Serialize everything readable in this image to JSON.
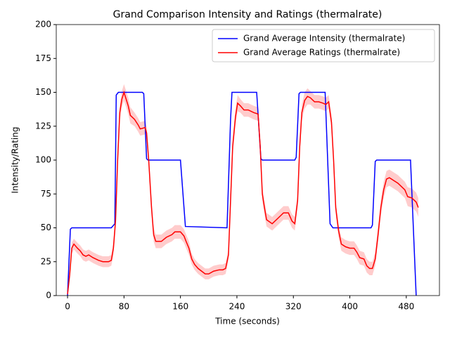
{
  "chart_data": {
    "type": "line",
    "title": "Grand Comparison Intensity and Ratings (thermalrate)",
    "x_label": "Time (seconds)",
    "y_label": "Intensity/Rating",
    "xlim": [
      -16,
      527
    ],
    "ylim": [
      0,
      200
    ],
    "xticks": [
      0,
      80,
      160,
      240,
      320,
      400,
      480
    ],
    "yticks": [
      0,
      25,
      50,
      75,
      100,
      125,
      150,
      175,
      200
    ],
    "legend": "upper right",
    "series": [
      {
        "name": "Grand Average Intensity (thermalrate)",
        "color": "#0000ff",
        "x": [
          0,
          4,
          6,
          62,
          67,
          69,
          72,
          106,
          108,
          112,
          114,
          160,
          167,
          226,
          231,
          233,
          268,
          274,
          276,
          322,
          324,
          328,
          330,
          365,
          372,
          376,
          430,
          432,
          436,
          438,
          486,
          494
        ],
        "values": [
          0,
          49,
          50,
          50,
          53,
          148,
          150,
          150,
          149,
          101,
          100,
          100,
          51,
          50,
          130,
          150,
          150,
          101,
          100,
          100,
          102,
          149,
          150,
          150,
          53,
          50,
          50,
          52,
          99,
          100,
          100,
          0
        ]
      },
      {
        "name": "Grand Average Ratings (thermalrate)",
        "color": "#ff0000",
        "band_color": "#ff0000",
        "x": [
          0,
          3,
          6,
          9,
          14,
          18,
          22,
          26,
          30,
          36,
          44,
          50,
          58,
          62,
          65,
          68,
          71,
          74,
          77,
          80,
          83,
          86,
          89,
          95,
          100,
          103,
          110,
          112,
          115,
          119,
          122,
          125,
          133,
          140,
          148,
          152,
          160,
          165,
          168,
          172,
          176,
          180,
          185,
          190,
          195,
          200,
          207,
          215,
          220,
          224,
          228,
          231,
          234,
          238,
          241,
          245,
          250,
          256,
          264,
          270,
          273,
          276,
          279,
          282,
          290,
          298,
          306,
          313,
          318,
          322,
          326,
          329,
          332,
          336,
          340,
          344,
          350,
          356,
          362,
          366,
          370,
          374,
          377,
          380,
          384,
          388,
          394,
          400,
          406,
          410,
          414,
          420,
          424,
          428,
          432,
          436,
          440,
          444,
          448,
          452,
          456,
          462,
          468,
          474,
          478,
          482,
          488,
          494,
          497
        ],
        "values": [
          1,
          15,
          35,
          38,
          35,
          33,
          30,
          29,
          30,
          28,
          26,
          25,
          25,
          26,
          35,
          55,
          100,
          135,
          145,
          150,
          145,
          140,
          133,
          130,
          126,
          123,
          124,
          120,
          100,
          65,
          45,
          40,
          40,
          43,
          45,
          47,
          47,
          44,
          40,
          35,
          27,
          23,
          20,
          18,
          16,
          16,
          18,
          19,
          19,
          20,
          30,
          70,
          110,
          132,
          142,
          140,
          137,
          137,
          135,
          134,
          110,
          75,
          65,
          56,
          53,
          57,
          61,
          61,
          55,
          53,
          70,
          110,
          135,
          144,
          147,
          146,
          143,
          143,
          142,
          141,
          143,
          128,
          100,
          65,
          48,
          38,
          36,
          35,
          35,
          32,
          28,
          27,
          22,
          20,
          20,
          27,
          45,
          65,
          78,
          86,
          87,
          85,
          83,
          80,
          78,
          73,
          72,
          69,
          65
        ],
        "error": [
          1,
          3,
          4,
          4,
          4,
          4,
          4,
          4,
          4,
          4,
          4,
          4,
          4,
          4,
          5,
          6,
          6,
          6,
          6,
          6,
          6,
          6,
          6,
          5,
          5,
          5,
          5,
          5,
          5,
          5,
          5,
          5,
          5,
          5,
          5,
          5,
          5,
          5,
          5,
          5,
          4,
          4,
          4,
          4,
          4,
          4,
          4,
          4,
          4,
          4,
          4,
          5,
          6,
          6,
          6,
          5,
          5,
          5,
          5,
          5,
          5,
          5,
          5,
          5,
          5,
          5,
          5,
          5,
          5,
          5,
          5,
          6,
          6,
          6,
          6,
          5,
          5,
          5,
          5,
          5,
          5,
          5,
          5,
          5,
          5,
          5,
          5,
          5,
          5,
          5,
          5,
          5,
          5,
          5,
          5,
          5,
          6,
          6,
          6,
          6,
          6,
          6,
          6,
          6,
          6,
          7,
          7,
          7,
          7
        ]
      }
    ]
  }
}
